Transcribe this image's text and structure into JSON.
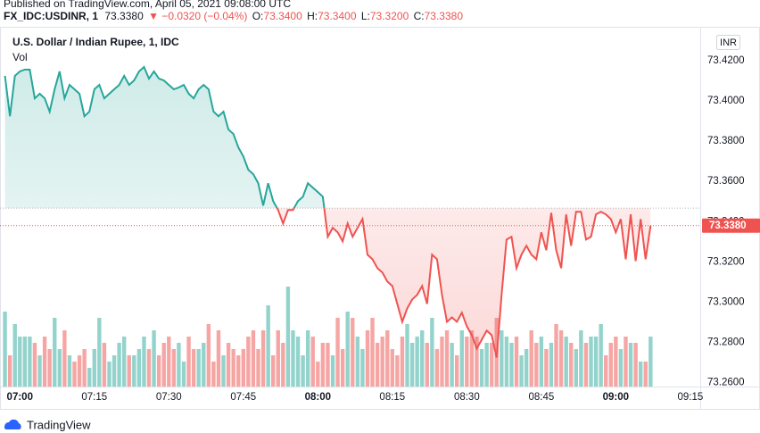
{
  "header": {
    "published": "Published on TradingView.com, April 05, 2021 09:08:00 UTC",
    "symbol": "FX_IDC:USDINR, 1",
    "last": "73.3380",
    "change": "▼ −0.0320 (−0.04%)",
    "open_label": "O:",
    "open": "73.3400",
    "high_label": "H:",
    "high": "73.3400",
    "low_label": "L:",
    "low": "73.3200",
    "close_label": "C:",
    "close": "73.3380"
  },
  "chart_data": {
    "type": "baseline",
    "title": "U.S. Dollar / Indian Rupee, 1, IDC",
    "volume_label": "Vol",
    "currency": "INR",
    "x": [
      417,
      418,
      419,
      420,
      421,
      422,
      423,
      424,
      425,
      426,
      427,
      428,
      429,
      430,
      431,
      432,
      433,
      434,
      435,
      436,
      437,
      438,
      439,
      440,
      441,
      442,
      443,
      444,
      445,
      446,
      447,
      448,
      449,
      450,
      451,
      452,
      453,
      454,
      455,
      456,
      457,
      458,
      459,
      460,
      461,
      462,
      463,
      464,
      465,
      466,
      467,
      468,
      469,
      470,
      471,
      472,
      473,
      474,
      475,
      476,
      477,
      478,
      479,
      480,
      481,
      482,
      483,
      484,
      485,
      486,
      487,
      488,
      489,
      490,
      491,
      492,
      493,
      494,
      495,
      496,
      497,
      498,
      499,
      500,
      501,
      502,
      503,
      504,
      505,
      506,
      507,
      508,
      509,
      510,
      511,
      512,
      513,
      514,
      515,
      516,
      517,
      518,
      519,
      520,
      521,
      522,
      523,
      524,
      525,
      526,
      527,
      528,
      529,
      530,
      531,
      532,
      533,
      534,
      535,
      536,
      537,
      538,
      539,
      540,
      541,
      542,
      543,
      544,
      545,
      546,
      547
    ],
    "series": [
      {
        "color_above": "#26a69a",
        "color_below": "#ef5350",
        "values": [
          73.4125,
          73.3924,
          73.4125,
          73.4147,
          73.4156,
          73.4156,
          73.4013,
          73.4036,
          73.4013,
          73.3947,
          73.4058,
          73.4147,
          73.4013,
          73.408,
          73.4058,
          73.4036,
          73.3924,
          73.3947,
          73.4058,
          73.408,
          73.4013,
          73.4036,
          73.4058,
          73.408,
          73.4125,
          73.408,
          73.4102,
          73.4147,
          73.4169,
          73.4111,
          73.4147,
          73.4111,
          73.4102,
          73.408,
          73.4058,
          73.4067,
          73.408,
          73.4036,
          73.4013,
          73.4058,
          73.408,
          73.4058,
          73.3947,
          73.3924,
          73.3947,
          73.3858,
          73.3836,
          73.3769,
          73.3724,
          73.3658,
          73.3636,
          73.3591,
          73.348,
          73.3591,
          73.3502,
          73.3458,
          73.3391,
          73.3458,
          73.3458,
          73.3502,
          73.3524,
          73.3591,
          73.3569,
          73.3547,
          73.3524,
          73.3325,
          73.3369,
          73.3347,
          73.3302,
          73.3391,
          73.3325,
          73.3369,
          73.3413,
          73.3236,
          73.3213,
          73.3169,
          73.3147,
          73.3102,
          73.308,
          73.2991,
          73.2902,
          73.2969,
          73.3013,
          73.3036,
          73.308,
          73.2991,
          73.3236,
          73.3213,
          73.3036,
          73.2902,
          73.2924,
          73.2902,
          73.2947,
          73.288,
          73.2836,
          73.2769,
          73.2813,
          73.2858,
          73.2836,
          73.2724,
          73.3036,
          73.3311,
          73.3325,
          73.3169,
          73.3236,
          73.328,
          73.3236,
          73.3213,
          73.3347,
          73.3258,
          73.3444,
          73.3258,
          73.3169,
          73.3436,
          73.328,
          73.3449,
          73.3449,
          73.3311,
          73.3325,
          73.3436,
          73.3449,
          73.3436,
          73.3413,
          73.3347,
          73.3413,
          73.3213,
          73.3436,
          73.3204,
          73.3413,
          73.3213,
          73.338
        ]
      }
    ],
    "volume": {
      "up_color": "#93d3cc",
      "down_color": "#f5a6a4",
      "vlim": [
        0,
        100
      ],
      "values": [
        60,
        25,
        50,
        40,
        40,
        40,
        35,
        25,
        40,
        30,
        55,
        30,
        45,
        25,
        20,
        25,
        30,
        15,
        30,
        55,
        35,
        20,
        25,
        35,
        40,
        25,
        25,
        30,
        40,
        30,
        45,
        25,
        35,
        40,
        30,
        35,
        20,
        40,
        30,
        30,
        35,
        50,
        20,
        45,
        25,
        35,
        30,
        25,
        30,
        40,
        45,
        30,
        45,
        65,
        25,
        45,
        35,
        80,
        45,
        40,
        25,
        45,
        40,
        20,
        35,
        35,
        25,
        55,
        30,
        60,
        55,
        40,
        30,
        45,
        55,
        35,
        40,
        45,
        30,
        25,
        40,
        50,
        35,
        40,
        45,
        35,
        55,
        30,
        40,
        45,
        35,
        25,
        45,
        40,
        45,
        40,
        30,
        35,
        35,
        55,
        45,
        40,
        35,
        40,
        25,
        30,
        45,
        35,
        40,
        30,
        35,
        50,
        45,
        40,
        35,
        30,
        45,
        35,
        40,
        40,
        50,
        25,
        35,
        40,
        30,
        40,
        35,
        35,
        20,
        20,
        40
      ]
    },
    "baseline": 73.3467,
    "price_marker": {
      "value": 73.338,
      "label": "73.3380",
      "color": "#ef5350"
    },
    "ylim": [
      73.258,
      73.436
    ],
    "yticks": [
      {
        "value": 73.26,
        "label": "73.2600"
      },
      {
        "value": 73.28,
        "label": "73.2800"
      },
      {
        "value": 73.3,
        "label": "73.3000"
      },
      {
        "value": 73.32,
        "label": "73.3200"
      },
      {
        "value": 73.34,
        "label": "73.3400"
      },
      {
        "value": 73.36,
        "label": "73.3600"
      },
      {
        "value": 73.38,
        "label": "73.3800"
      },
      {
        "value": 73.4,
        "label": "73.4000"
      },
      {
        "value": 73.42,
        "label": "73.4200"
      }
    ],
    "xlim": [
      416,
      557
    ],
    "xticks": [
      {
        "value": 420,
        "label": "07:00"
      },
      {
        "value": 435,
        "label": "07:15"
      },
      {
        "value": 450,
        "label": "07:30"
      },
      {
        "value": 465,
        "label": "07:45"
      },
      {
        "value": 480,
        "label": "08:00"
      },
      {
        "value": 495,
        "label": "08:15"
      },
      {
        "value": 510,
        "label": "08:30"
      },
      {
        "value": 525,
        "label": "08:45"
      },
      {
        "value": 540,
        "label": "09:00"
      },
      {
        "value": 555,
        "label": "09:15"
      }
    ],
    "grid": false
  },
  "footer": {
    "brand": "TradingView"
  }
}
